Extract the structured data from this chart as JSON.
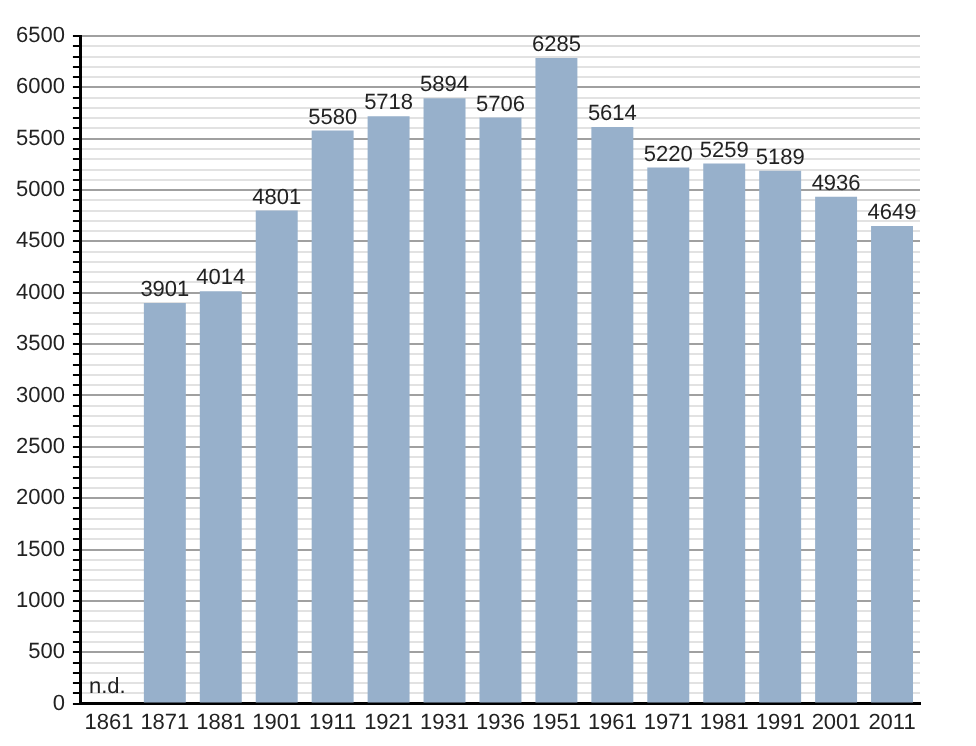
{
  "chart_data": {
    "type": "bar",
    "categories": [
      "1861",
      "1871",
      "1881",
      "1901",
      "1911",
      "1921",
      "1931",
      "1936",
      "1951",
      "1961",
      "1971",
      "1981",
      "1991",
      "2001",
      "2011"
    ],
    "values": [
      null,
      3901,
      4014,
      4801,
      5580,
      5718,
      5894,
      5706,
      6285,
      5614,
      5220,
      5259,
      5189,
      4936,
      4649
    ],
    "value_labels": [
      "n.d.",
      "3901",
      "4014",
      "4801",
      "5580",
      "5718",
      "5894",
      "5706",
      "6285",
      "5614",
      "5220",
      "5259",
      "5189",
      "4936",
      "4649"
    ],
    "color": "#97b0cb",
    "ylim": [
      0,
      6500
    ],
    "yticks": [
      0,
      {
        "value": 100,
        "label": null
      },
      {
        "value": 200,
        "label": null
      },
      {
        "value": 300,
        "label": null
      },
      {
        "value": 400,
        "label": null
      },
      500,
      {
        "value": 600,
        "label": null
      },
      {
        "value": 700,
        "label": null
      },
      {
        "value": 800,
        "label": null
      },
      {
        "value": 900,
        "label": null
      },
      1000,
      {
        "value": 1100,
        "label": null
      },
      {
        "value": 1200,
        "label": null
      },
      {
        "value": 1300,
        "label": null
      },
      {
        "value": 1400,
        "label": null
      },
      1500,
      {
        "value": 1600,
        "label": null
      },
      {
        "value": 1700,
        "label": null
      },
      {
        "value": 1800,
        "label": null
      },
      {
        "value": 1900,
        "label": null
      },
      2000,
      {
        "value": 2100,
        "label": null
      },
      {
        "value": 2200,
        "label": null
      },
      {
        "value": 2300,
        "label": null
      },
      {
        "value": 2400,
        "label": null
      },
      2500,
      {
        "value": 2600,
        "label": null
      },
      {
        "value": 2700,
        "label": null
      },
      {
        "value": 2800,
        "label": null
      },
      {
        "value": 2900,
        "label": null
      },
      3000,
      {
        "value": 3100,
        "label": null
      },
      {
        "value": 3200,
        "label": null
      },
      {
        "value": 3300,
        "label": null
      },
      {
        "value": 3400,
        "label": null
      },
      3500,
      {
        "value": 3600,
        "label": null
      },
      {
        "value": 3700,
        "label": null
      },
      {
        "value": 3800,
        "label": null
      },
      {
        "value": 3900,
        "label": null
      },
      4000,
      {
        "value": 4100,
        "label": null
      },
      {
        "value": 4200,
        "label": null
      },
      {
        "value": 4300,
        "label": null
      },
      {
        "value": 4400,
        "label": null
      },
      4500,
      {
        "value": 4600,
        "label": null
      },
      {
        "value": 4700,
        "label": null
      },
      {
        "value": 4800,
        "label": null
      },
      {
        "value": 4900,
        "label": null
      },
      5000,
      {
        "value": 5100,
        "label": null
      },
      {
        "value": 5200,
        "label": null
      },
      {
        "value": 5300,
        "label": null
      },
      {
        "value": 5400,
        "label": null
      },
      5500,
      {
        "value": 5600,
        "label": null
      },
      {
        "value": 5700,
        "label": null
      },
      {
        "value": 5800,
        "label": null
      },
      {
        "value": 5900,
        "label": null
      },
      6000,
      {
        "value": 6100,
        "label": null
      },
      {
        "value": 6200,
        "label": null
      },
      {
        "value": 6300,
        "label": null
      },
      {
        "value": 6400,
        "label": null
      },
      6500
    ],
    "grid": "y"
  }
}
